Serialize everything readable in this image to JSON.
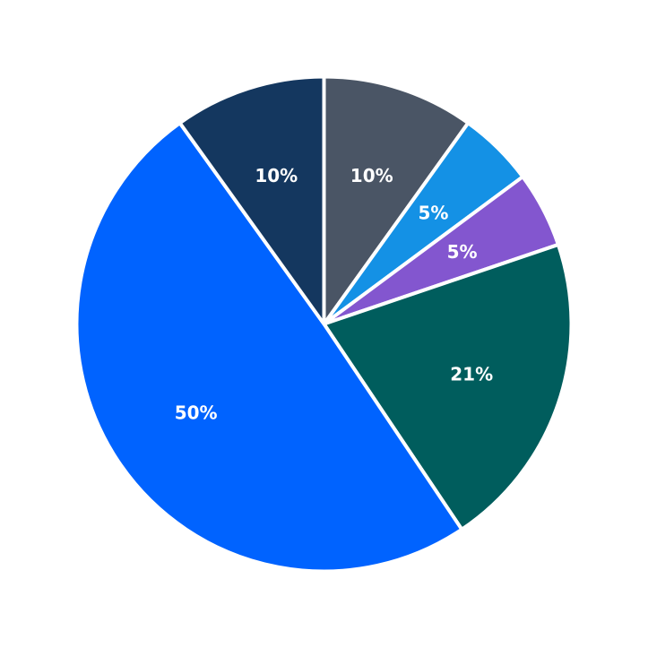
{
  "chart_data": {
    "type": "pie",
    "start": "12 o'clock",
    "direction": "clockwise",
    "slices": [
      {
        "value": 10,
        "label": "10%",
        "color": "#4a5565"
      },
      {
        "value": 5,
        "label": "5%",
        "color": "#1491e5"
      },
      {
        "value": 5,
        "label": "5%",
        "color": "#8356cf"
      },
      {
        "value": 21,
        "label": "21%",
        "color": "#005d5d"
      },
      {
        "value": 50,
        "label": "50%",
        "color": "#0063ff"
      },
      {
        "value": 10,
        "label": "10%",
        "color": "#14375f"
      }
    ]
  }
}
